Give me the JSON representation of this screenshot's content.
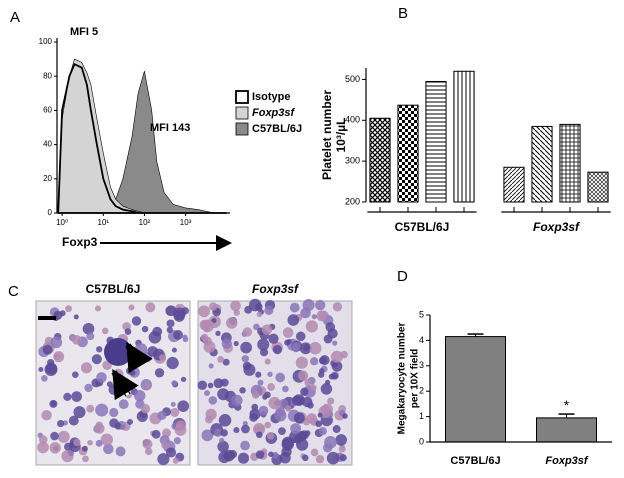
{
  "chart_data": [
    {
      "type": "area",
      "panel": "A",
      "xlabel": "Foxp3",
      "xscale": "log",
      "xlim": [
        0.75,
        12000
      ],
      "ylim": [
        0,
        100
      ],
      "yticks": [
        0,
        20,
        40,
        60,
        80,
        100
      ],
      "xticks": [
        {
          "value": 1,
          "label": "10⁰"
        },
        {
          "value": 10,
          "label": "10¹"
        },
        {
          "value": 100,
          "label": "10²"
        },
        {
          "value": 1000,
          "label": "10³"
        }
      ],
      "x": [
        0.8,
        1,
        1.5,
        2,
        3,
        4,
        5,
        7,
        10,
        15,
        20,
        30,
        50,
        70,
        100,
        150,
        200,
        300,
        500,
        1000,
        2000,
        5000,
        10000
      ],
      "series": [
        {
          "name": "C57BL/6J",
          "color": "#8a8a8a",
          "values": [
            0,
            3,
            4,
            4,
            5,
            4,
            4,
            4,
            5,
            6,
            8,
            20,
            45,
            70,
            83,
            60,
            30,
            12,
            5,
            3,
            2,
            0,
            0
          ]
        },
        {
          "name": "Foxp3sf",
          "color": "#d4d4d4",
          "values": [
            0,
            55,
            80,
            90,
            88,
            82,
            75,
            55,
            35,
            15,
            8,
            4,
            2,
            1,
            0,
            0,
            0,
            0,
            0,
            0,
            0,
            0,
            0
          ]
        },
        {
          "name": "Isotype",
          "color": "#ffffff",
          "values": [
            0,
            60,
            80,
            87,
            85,
            75,
            60,
            40,
            20,
            8,
            4,
            2,
            1,
            0,
            0,
            0,
            0,
            0,
            0,
            0,
            0,
            0,
            0
          ]
        }
      ],
      "annotations": [
        "MFI  5",
        "MFI  143"
      ]
    },
    {
      "type": "bar",
      "panel": "B",
      "ylabel": [
        "Platelet number",
        "10³/µL"
      ],
      "categories": [
        null,
        null,
        null,
        null,
        null,
        null,
        null,
        null
      ],
      "values": [
        405,
        437,
        495,
        520,
        285,
        385,
        390,
        273
      ],
      "groups": [
        "C57BL/6J",
        "Foxp3sf"
      ],
      "ylim": [
        200,
        528
      ],
      "yticks": [
        200,
        300,
        400,
        500
      ]
    },
    {
      "type": "errorbar",
      "panel": "D",
      "ylabel": [
        "Megakaryocyte number",
        "per 10X field"
      ],
      "categories": [
        "C57BL/6J",
        "Foxp3sf"
      ],
      "values": [
        4.15,
        0.95
      ],
      "errors": [
        0.1,
        0.15
      ],
      "color": "#808080",
      "ylim": [
        0,
        5
      ],
      "yticks": [
        0,
        1,
        2,
        3,
        4,
        5
      ],
      "annotations": [
        "*"
      ]
    }
  ],
  "micrographs": {
    "panel": "C",
    "titles": [
      "C57BL/6J",
      "Foxp3sf"
    ]
  }
}
